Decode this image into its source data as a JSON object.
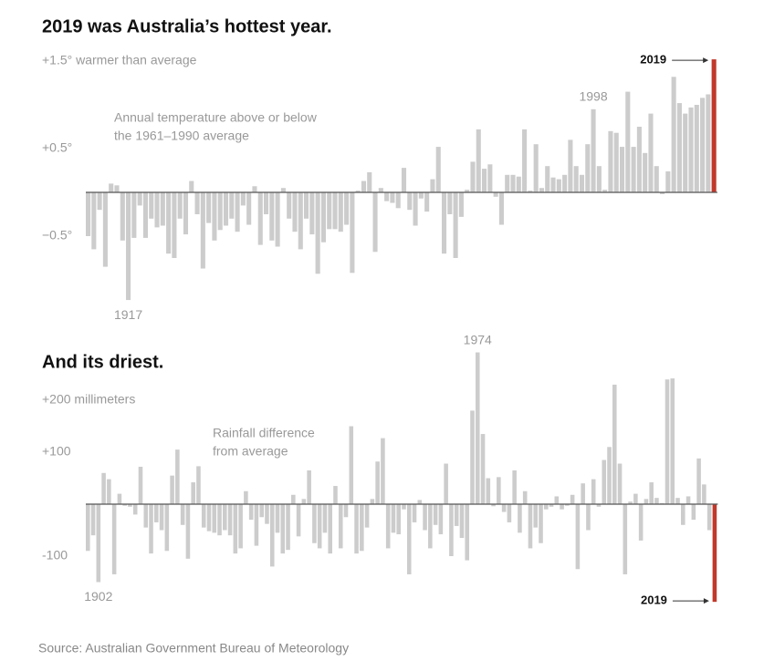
{
  "charts": [
    {
      "chart_data": {
        "type": "bar",
        "title": "2019 was Australia’s hottest year.",
        "annotation_lines": [
          "Annual temperature above or below",
          "the 1961–1990 average"
        ],
        "categories": [
          null,
          null,
          null,
          null,
          null,
          null,
          null,
          "1917",
          null,
          null,
          null,
          null,
          null,
          null,
          null,
          null,
          null,
          null,
          null,
          null,
          null,
          null,
          null,
          null,
          null,
          null,
          null,
          null,
          null,
          null,
          null,
          null,
          null,
          null,
          null,
          null,
          null,
          null,
          null,
          null,
          null,
          null,
          null,
          null,
          null,
          null,
          null,
          null,
          null,
          null,
          null,
          null,
          null,
          null,
          null,
          null,
          null,
          null,
          null,
          null,
          null,
          null,
          null,
          null,
          null,
          null,
          null,
          null,
          null,
          null,
          null,
          null,
          null,
          null,
          null,
          null,
          null,
          null,
          null,
          null,
          null,
          null,
          null,
          null,
          null,
          null,
          null,
          null,
          "1998",
          null,
          null,
          null,
          null,
          null,
          null,
          null,
          null,
          null,
          null,
          null,
          null,
          null,
          null,
          null,
          null,
          null,
          null,
          null,
          null,
          "2019"
        ],
        "values": [
          -0.5,
          -0.65,
          -0.2,
          -0.85,
          0.1,
          0.08,
          -0.55,
          -1.23,
          -0.52,
          -0.15,
          -0.52,
          -0.3,
          -0.4,
          -0.38,
          -0.7,
          -0.75,
          -0.3,
          -0.48,
          0.13,
          -0.25,
          -0.87,
          -0.35,
          -0.55,
          -0.43,
          -0.38,
          -0.3,
          -0.45,
          -0.15,
          -0.37,
          0.07,
          -0.6,
          -0.25,
          -0.55,
          -0.62,
          0.05,
          -0.3,
          -0.45,
          -0.65,
          -0.3,
          -0.48,
          -0.93,
          -0.57,
          -0.42,
          -0.42,
          -0.45,
          -0.37,
          -0.92,
          0.02,
          0.13,
          0.23,
          -0.68,
          0.05,
          -0.1,
          -0.12,
          -0.18,
          0.28,
          -0.2,
          -0.38,
          -0.07,
          -0.22,
          0.15,
          0.52,
          -0.7,
          -0.25,
          -0.75,
          -0.28,
          0.03,
          0.35,
          0.72,
          0.27,
          0.32,
          -0.05,
          -0.37,
          0.2,
          0.2,
          0.18,
          0.72,
          0.02,
          0.55,
          0.05,
          0.3,
          0.17,
          0.15,
          0.2,
          0.6,
          0.3,
          0.2,
          0.55,
          0.95,
          0.3,
          0.03,
          0.7,
          0.68,
          0.52,
          1.15,
          0.52,
          0.75,
          0.45,
          0.9,
          0.3,
          -0.02,
          0.24,
          1.32,
          1.02,
          0.9,
          0.97,
          1.0,
          1.08,
          1.12,
          1.52
        ],
        "color": "#cccccc",
        "highlight": "2019",
        "highlight_color": "#c0392b",
        "ylim": [
          -1.4,
          1.6
        ],
        "yticks": [
          {
            "value": 1.5,
            "label": "+1.5° warmer than average"
          },
          {
            "value": 0.5,
            "label": "+0.5°"
          },
          {
            "value": -0.5,
            "label": "−0.5°"
          }
        ]
      }
    },
    {
      "chart_data": {
        "type": "bar",
        "title": "And its driest.",
        "annotation_lines": [
          "Rainfall difference",
          "from average"
        ],
        "categories": [
          null,
          null,
          "1902",
          null,
          null,
          null,
          null,
          null,
          null,
          null,
          null,
          null,
          null,
          null,
          null,
          null,
          null,
          null,
          null,
          null,
          null,
          null,
          null,
          null,
          null,
          null,
          null,
          null,
          null,
          null,
          null,
          null,
          null,
          null,
          null,
          null,
          null,
          null,
          null,
          null,
          null,
          null,
          null,
          null,
          null,
          null,
          null,
          null,
          null,
          null,
          null,
          null,
          null,
          null,
          null,
          null,
          null,
          null,
          null,
          null,
          null,
          null,
          null,
          null,
          null,
          null,
          null,
          null,
          null,
          null,
          null,
          null,
          null,
          null,
          "1974",
          null,
          null,
          null,
          null,
          null,
          null,
          null,
          null,
          null,
          null,
          null,
          null,
          null,
          null,
          null,
          null,
          null,
          null,
          null,
          null,
          null,
          null,
          null,
          null,
          null,
          null,
          null,
          null,
          null,
          null,
          null,
          null,
          null,
          null,
          null,
          null,
          null,
          null,
          null,
          null,
          null,
          null,
          null,
          null,
          "2019"
        ],
        "values": [
          -90,
          -60,
          -150,
          60,
          48,
          -135,
          20,
          -3,
          -5,
          -20,
          72,
          -45,
          -95,
          -35,
          -50,
          -90,
          55,
          105,
          -40,
          -105,
          42,
          73,
          -45,
          -52,
          -55,
          -60,
          -50,
          -60,
          -95,
          -85,
          25,
          -30,
          -80,
          -25,
          -38,
          -120,
          -55,
          -95,
          -88,
          18,
          -62,
          10,
          65,
          -75,
          -85,
          -55,
          -95,
          35,
          -85,
          -25,
          150,
          -95,
          -90,
          -45,
          10,
          82,
          127,
          -85,
          -55,
          -58,
          -10,
          -135,
          -35,
          8,
          -50,
          -85,
          -40,
          -58,
          78,
          -100,
          -42,
          -65,
          -108,
          180,
          292,
          135,
          50,
          -4,
          52,
          -15,
          -35,
          65,
          -55,
          25,
          -85,
          -45,
          -75,
          -10,
          -5,
          15,
          -10,
          -3,
          18,
          -125,
          40,
          -50,
          48,
          -5,
          85,
          110,
          230,
          78,
          -135,
          5,
          20,
          -70,
          10,
          42,
          12,
          2,
          240,
          242,
          12,
          -40,
          15,
          -30,
          88,
          38,
          -50,
          -188
        ],
        "color": "#cccccc",
        "highlight": "2019",
        "highlight_color": "#c0392b",
        "ylim": [
          -200,
          300
        ],
        "yticks": [
          {
            "value": 200,
            "label": "+200 millimeters"
          },
          {
            "value": 100,
            "label": "+100"
          },
          -100
        ]
      }
    }
  ],
  "source": "Source: Australian Government Bureau of Meteorology"
}
